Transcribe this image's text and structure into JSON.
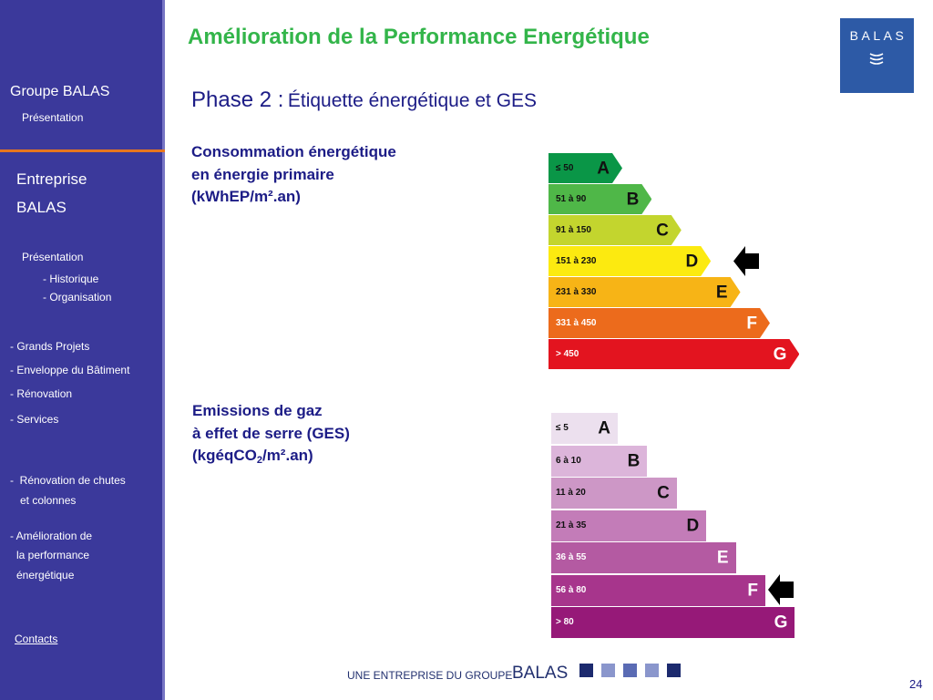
{
  "slide": {
    "title": "Amélioration de la Performance Energétique",
    "phase_label": "Phase 2 :",
    "phase_subtitle": "Étiquette énergétique et GES",
    "page_number": "24"
  },
  "sidebar": {
    "group_title": "Groupe BALAS",
    "group_presentation": "Présentation",
    "company_line1": "Entreprise",
    "company_line2": "BALAS",
    "company_presentation": "Présentation",
    "historique": "- Historique",
    "organisation": "- Organisation",
    "grands_projets": "- Grands Projets",
    "enveloppe": "- Enveloppe du Bâtiment",
    "renovation": "- Rénovation",
    "services": "- Services",
    "chutes_line1": "-  Rénovation de chutes",
    "chutes_line2": "et colonnes",
    "amelioration_line1": "- Amélioration de",
    "amelioration_line2": "la performance",
    "amelioration_line3": "énergétique",
    "contacts": "Contacts"
  },
  "logo": {
    "text": "BALAS",
    "icon": "wave-icon",
    "background": "#2d5aa6"
  },
  "energy_label": {
    "heading_line1": "Consommation énergétique",
    "heading_line2": "en énergie primaire",
    "heading_line3": "(kWhEP/m².an)",
    "selected_class": "D",
    "classes": [
      {
        "letter": "A",
        "range": "≤ 50",
        "color": "#0a9647",
        "text_color": "#111111"
      },
      {
        "letter": "B",
        "range": "51 à 90",
        "color": "#4fb748",
        "text_color": "#111111"
      },
      {
        "letter": "C",
        "range": "91 à 150",
        "color": "#c3d52e",
        "text_color": "#111111"
      },
      {
        "letter": "D",
        "range": "151 à 230",
        "color": "#fcea10",
        "text_color": "#111111"
      },
      {
        "letter": "E",
        "range": "231 à 330",
        "color": "#f7b416",
        "text_color": "#111111"
      },
      {
        "letter": "F",
        "range": "331 à 450",
        "color": "#ec6b1c",
        "text_color": "#ffffff"
      },
      {
        "letter": "G",
        "range": "> 450",
        "color": "#e3141f",
        "text_color": "#ffffff"
      }
    ]
  },
  "ges_label": {
    "heading_line1": "Emissions de gaz",
    "heading_line2": "à effet de serre (GES)",
    "heading_line3_prefix": "(kgéqCO",
    "heading_line3_sub": "2",
    "heading_line3_suffix": "/m².an)",
    "selected_class": "F",
    "classes": [
      {
        "letter": "A",
        "range": "≤ 5",
        "color": "#ece0ee",
        "text_color": "#111111"
      },
      {
        "letter": "B",
        "range": "6 à 10",
        "color": "#dcb5da",
        "text_color": "#111111"
      },
      {
        "letter": "C",
        "range": "11 à 20",
        "color": "#cd97c6",
        "text_color": "#111111"
      },
      {
        "letter": "D",
        "range": "21 à 35",
        "color": "#c37cb8",
        "text_color": "#111111"
      },
      {
        "letter": "E",
        "range": "36 à 55",
        "color": "#b45aa2",
        "text_color": "#ffffff"
      },
      {
        "letter": "F",
        "range": "56 à 80",
        "color": "#a7358c",
        "text_color": "#ffffff"
      },
      {
        "letter": "G",
        "range": "> 80",
        "color": "#961978",
        "text_color": "#ffffff"
      }
    ]
  },
  "footer": {
    "tagline": "UNE ENTREPRISE DU GROUPE",
    "brand": "BALAS",
    "squares": [
      "#1c2a6e",
      "#8a96cc",
      "#5a6bb4",
      "#8a96cc",
      "#1c2a6e"
    ]
  },
  "colors": {
    "sidebar": "#3b399b",
    "accent": "#e8761f",
    "title": "#33b54a",
    "text": "#1c1c86"
  }
}
